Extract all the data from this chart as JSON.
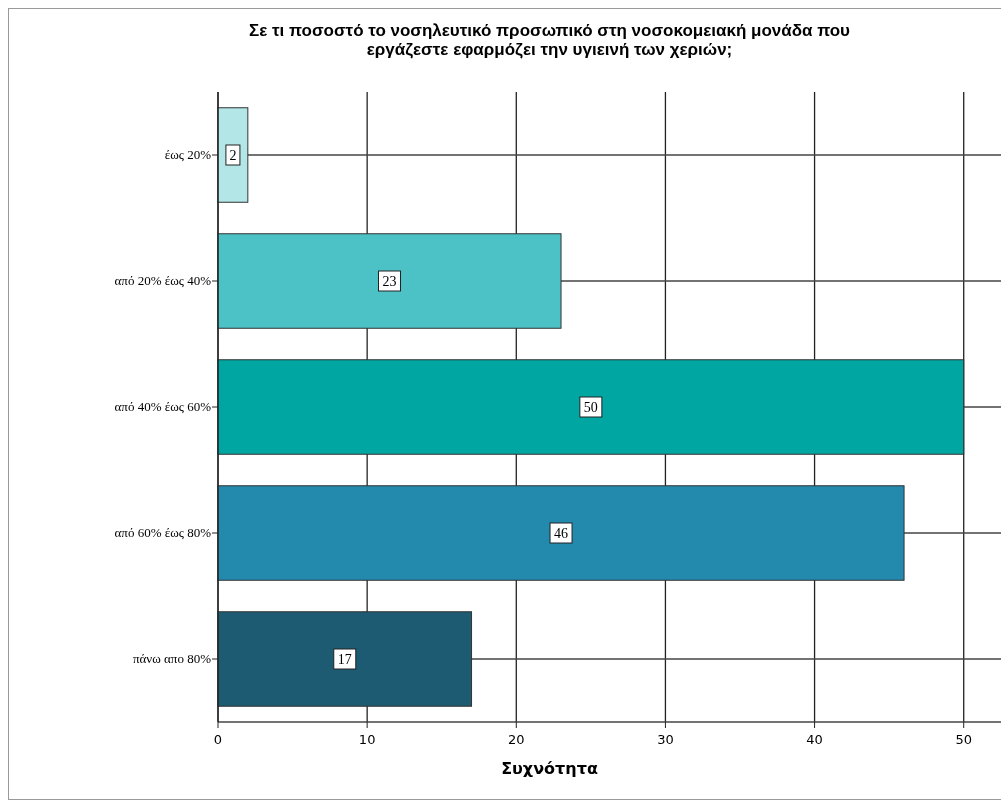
{
  "chart_data": {
    "type": "bar",
    "orientation": "horizontal",
    "title": "Σε τι ποσοστό το νοσηλευτικό προσωπικό στη νοσοκομειακή μονάδα που εργάζεστε εφαρμόζει την υγιεινή των χεριών;",
    "xlabel": "Συχνότητα",
    "categories": [
      "έως 20%",
      "από 20% έως 40%",
      "από 40% έως 60%",
      "από 60% έως 80%",
      "πάνω απο 80%"
    ],
    "values": [
      2,
      23,
      50,
      46,
      17
    ],
    "colors": [
      "#b3e6e6",
      "#4cc2c6",
      "#00a6a2",
      "#2389ad",
      "#1c5b72"
    ],
    "xlim": [
      0,
      52.5
    ],
    "xticks": [
      0,
      10,
      20,
      30,
      40,
      50
    ],
    "grid": true,
    "data_labels": true
  }
}
